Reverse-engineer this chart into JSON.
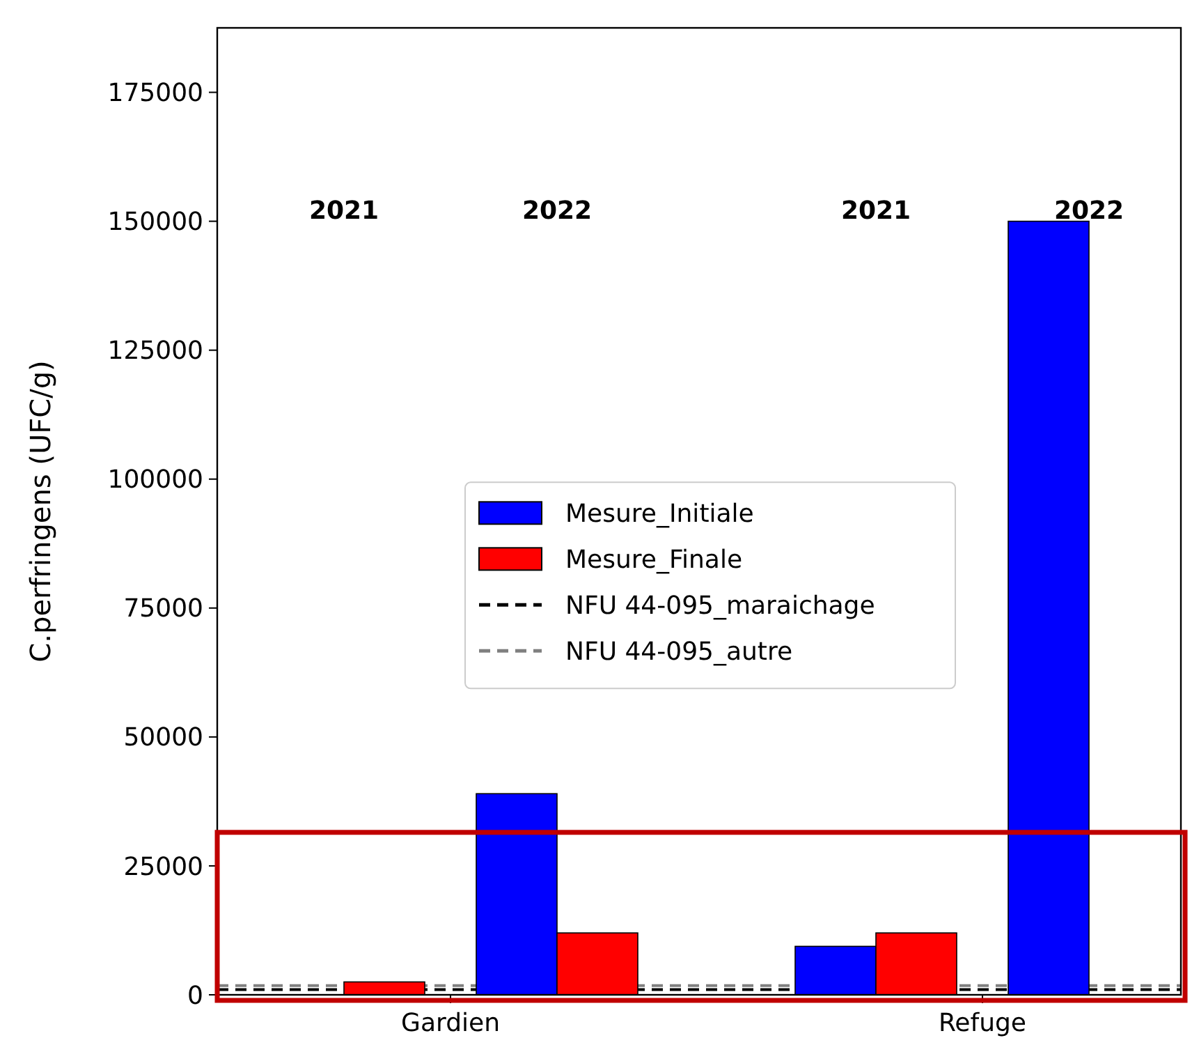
{
  "chart_data": {
    "type": "bar",
    "ylabel": "C.perfringens (UFC/g)",
    "categories": [
      "2021",
      "2022",
      "2021",
      "2022"
    ],
    "series": [
      {
        "name": "Mesure_Initiale",
        "color": "#0000ff",
        "values": [
          null,
          39000,
          9400,
          150000
        ]
      },
      {
        "name": "Mesure_Finale",
        "color": "#ff0000",
        "values": [
          2500,
          12000,
          12000,
          null
        ]
      }
    ],
    "ref_lines": [
      {
        "axis": "y",
        "value": 1000,
        "label": "NFU 44-095_maraichage",
        "color": "#000000",
        "line_style": "dashed"
      },
      {
        "axis": "y",
        "value": 1800,
        "label": "NFU 44-095_autre",
        "color": "#808080",
        "line_style": "dashed"
      }
    ],
    "annotations": [
      "Gardien",
      "Refuge"
    ],
    "ylim": [
      0,
      187500
    ],
    "yticks": [
      0,
      25000,
      50000,
      75000,
      100000,
      125000,
      150000,
      175000
    ],
    "grid": false,
    "legend": "center"
  }
}
